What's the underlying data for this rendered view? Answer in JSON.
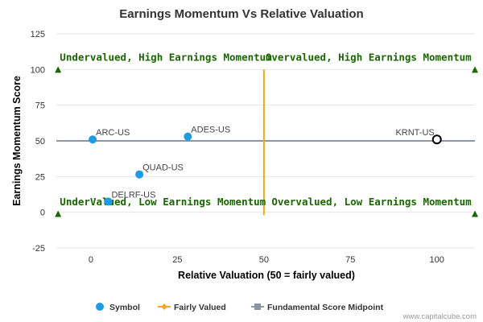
{
  "chart_data": {
    "type": "scatter",
    "title": "Earnings Momentum Vs Relative Valuation",
    "xlabel": "Relative Valuation (50 = fairly valued)",
    "ylabel": "Earnings Momentum Score",
    "xlim": [
      -10,
      111
    ],
    "ylim": [
      -25,
      125
    ],
    "xticks": [
      0,
      25,
      50,
      75,
      100
    ],
    "yticks": [
      -25,
      0,
      25,
      50,
      75,
      100,
      125
    ],
    "grid": "horizontal",
    "colors": {
      "symbol": "#1e9be6",
      "fairly_valued": "#f5a623",
      "midpoint": "#8a96a3",
      "quadrant_text": "#1a6600",
      "marker": "#1a6600"
    },
    "points": [
      {
        "label": "ARC-US",
        "x": 0.5,
        "y": 51,
        "highlight": false
      },
      {
        "label": "ADES-US",
        "x": 28,
        "y": 53,
        "highlight": false
      },
      {
        "label": "QUAD-US",
        "x": 14,
        "y": 26.5,
        "highlight": false
      },
      {
        "label": "DELRF-US",
        "x": 5,
        "y": 7.5,
        "highlight": false
      },
      {
        "label": "KRNT-US",
        "x": 100,
        "y": 51,
        "highlight": true
      }
    ],
    "fairly_valued_line": {
      "x": 50,
      "y": [
        -2,
        100
      ]
    },
    "midpoint_line": {
      "y": 50,
      "x": [
        -10,
        111
      ]
    },
    "corner_markers": [
      {
        "x": -9.5,
        "y": 100
      },
      {
        "x": 111,
        "y": 100
      },
      {
        "x": -9.5,
        "y": -1
      },
      {
        "x": 111,
        "y": -1
      }
    ],
    "quadrant_labels": [
      {
        "text": "Undervalued, High Earnings Momentum",
        "x": -9,
        "y": 106,
        "anchor": "start"
      },
      {
        "text": "Overvalued, High Earnings Momentum",
        "x": 110,
        "y": 106,
        "anchor": "end"
      },
      {
        "text": "UnderValued, Low Earnings Momentum",
        "x": -9,
        "y": 5,
        "anchor": "start"
      },
      {
        "text": "Overvalued, Low Earnings Momentum",
        "x": 110,
        "y": 5,
        "anchor": "end"
      }
    ],
    "legend": {
      "placement": "bottom",
      "items": [
        {
          "label": "Symbol",
          "kind": "circle"
        },
        {
          "label": "Fairly Valued",
          "kind": "diamond-line"
        },
        {
          "label": "Fundamental Score Midpoint",
          "kind": "square-line"
        }
      ]
    },
    "credit": "www.capitalcube.com"
  }
}
